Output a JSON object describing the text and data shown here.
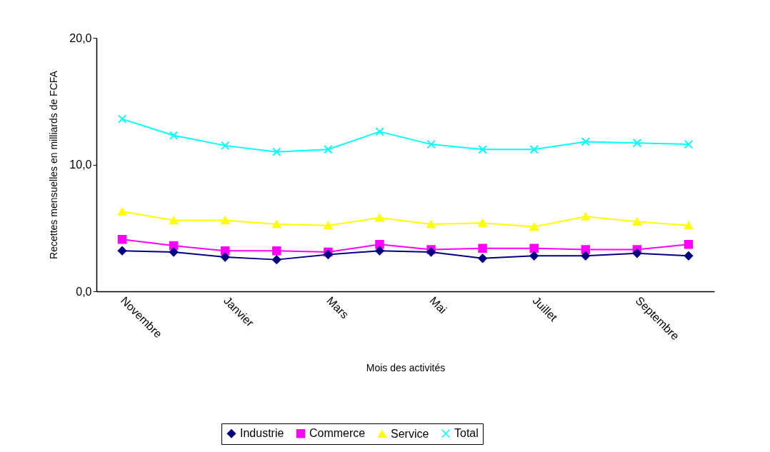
{
  "chart_data": {
    "type": "line",
    "xlabel": "Mois des activités",
    "ylabel": "Recettes mensuelles en milliards de FCFA",
    "categories": [
      "Novembre",
      null,
      "Janvier",
      null,
      "Mars",
      null,
      "Mai",
      null,
      "Juillet",
      null,
      "Septembre",
      null
    ],
    "series": [
      {
        "name": "Industrie",
        "color": "#000080",
        "marker": "diamond",
        "values": [
          3.2,
          3.1,
          2.7,
          2.5,
          2.9,
          3.2,
          3.1,
          2.6,
          2.8,
          2.8,
          3.0,
          2.8
        ]
      },
      {
        "name": "Commerce",
        "color": "#ff00ff",
        "marker": "square",
        "values": [
          4.1,
          3.6,
          3.2,
          3.2,
          3.1,
          3.7,
          3.3,
          3.4,
          3.4,
          3.3,
          3.3,
          3.7
        ]
      },
      {
        "name": "Service",
        "color": "#ffff00",
        "marker": "triangle",
        "values": [
          6.3,
          5.6,
          5.6,
          5.3,
          5.2,
          5.8,
          5.3,
          5.4,
          5.1,
          5.9,
          5.5,
          5.2
        ]
      },
      {
        "name": "Total",
        "color": "#00ffff",
        "marker": "cross",
        "values": [
          13.6,
          12.3,
          11.5,
          11.0,
          11.2,
          12.6,
          11.6,
          11.2,
          11.2,
          11.8,
          11.7,
          11.6
        ]
      }
    ],
    "ylim": [
      0,
      20
    ],
    "yticks": [
      {
        "value": 0,
        "label": "0,0"
      },
      {
        "value": 10,
        "label": "10,0"
      },
      {
        "value": 20,
        "label": "20,0"
      }
    ],
    "grid": false,
    "legend": "bottom",
    "line_style": "solid"
  }
}
